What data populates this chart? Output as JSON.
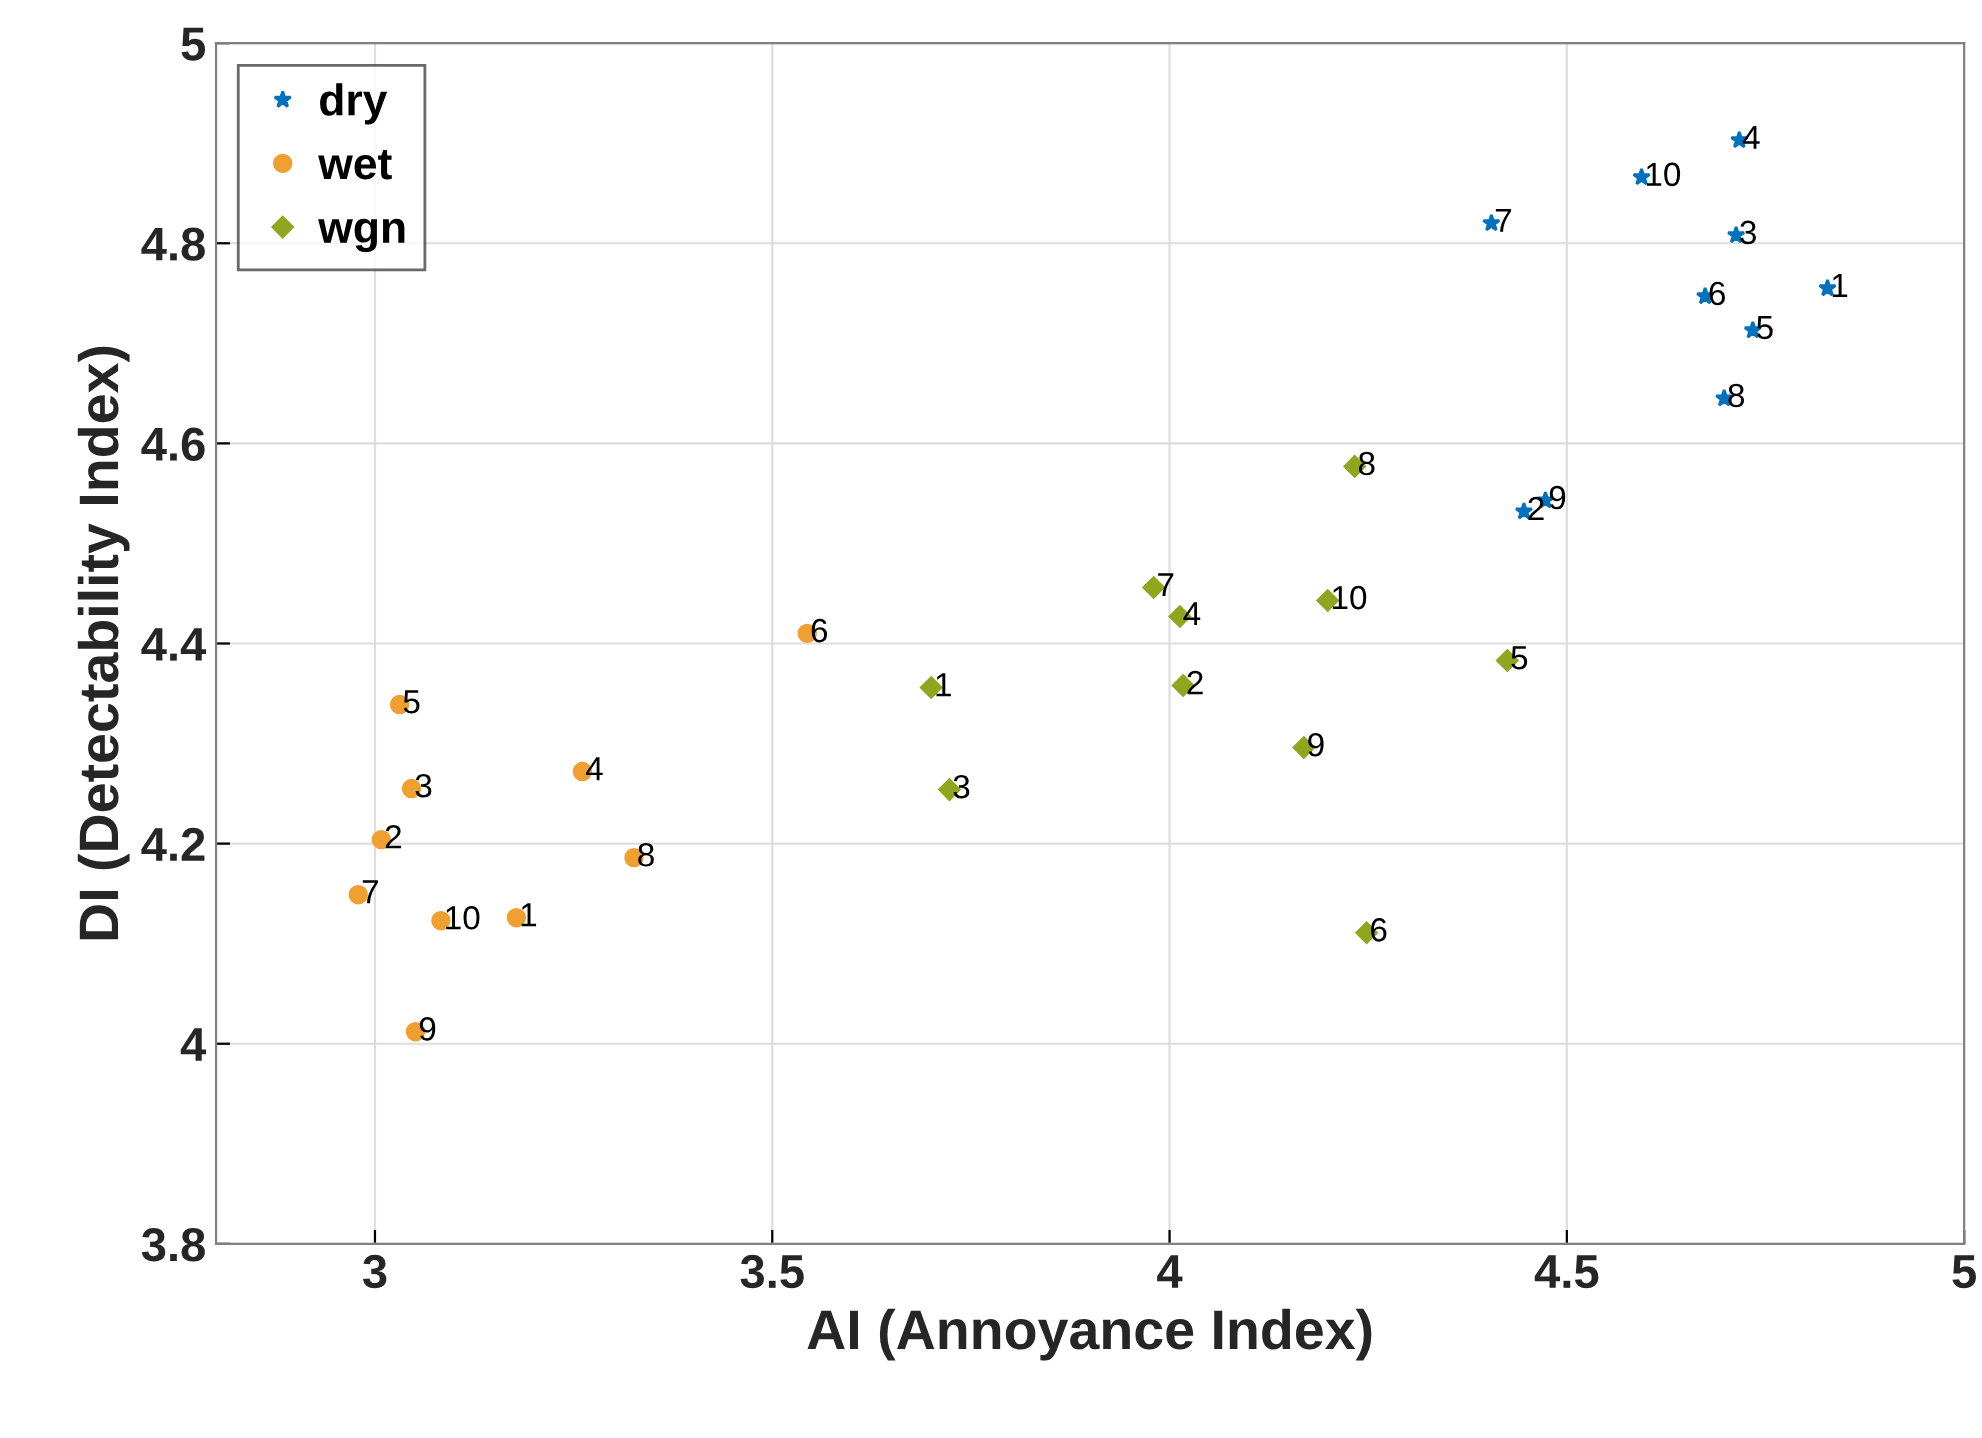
{
  "chart_data": {
    "type": "scatter",
    "xlabel": "AI (Annoyance Index)",
    "ylabel": "DI (Detectability Index)",
    "xlim": [
      2.8,
      5
    ],
    "xticks": [
      3,
      3.5,
      4,
      4.5,
      5
    ],
    "ylim": [
      3.8,
      5
    ],
    "yticks": [
      3.8,
      4,
      4.2,
      4.4,
      4.6,
      4.8,
      5
    ],
    "grid": true,
    "legend": "top left",
    "series": [
      {
        "name": "dry",
        "color": "#0072bd",
        "marker": "star",
        "x": [
          4.828,
          4.446,
          4.713,
          4.717,
          4.734,
          4.674,
          4.405,
          4.698,
          4.473,
          4.594
        ],
        "values": [
          4.755,
          4.532,
          4.808,
          4.903,
          4.713,
          4.747,
          4.82,
          4.645,
          4.543,
          4.866
        ]
      },
      {
        "name": "wet",
        "color": "#f0a030",
        "marker": "circle",
        "x": [
          3.178,
          3.008,
          3.046,
          3.261,
          3.031,
          3.544,
          2.979,
          3.326,
          3.051,
          3.083
        ],
        "values": [
          4.126,
          4.204,
          4.255,
          4.272,
          4.339,
          4.41,
          4.149,
          4.186,
          4.012,
          4.123
        ]
      },
      {
        "name": "wgn",
        "color": "#8fa61e",
        "marker": "diamond",
        "x": [
          3.7,
          4.017,
          3.723,
          4.013,
          4.425,
          4.248,
          3.98,
          4.233,
          4.169,
          4.199
        ],
        "values": [
          4.356,
          4.358,
          4.254,
          4.427,
          4.383,
          4.111,
          4.456,
          4.577,
          4.296,
          4.443
        ]
      }
    ],
    "annotations": [
      {
        "text": "1",
        "x": 4.828,
        "y": 4.755
      },
      {
        "text": "2",
        "x": 4.446,
        "y": 4.532
      },
      {
        "text": "3",
        "x": 4.713,
        "y": 4.808
      },
      {
        "text": "4",
        "x": 4.717,
        "y": 4.903
      },
      {
        "text": "5",
        "x": 4.734,
        "y": 4.713
      },
      {
        "text": "6",
        "x": 4.674,
        "y": 4.747
      },
      {
        "text": "7",
        "x": 4.405,
        "y": 4.82
      },
      {
        "text": "8",
        "x": 4.698,
        "y": 4.645
      },
      {
        "text": "9",
        "x": 4.473,
        "y": 4.543
      },
      {
        "text": "10",
        "x": 4.594,
        "y": 4.866
      },
      {
        "text": "1",
        "x": 3.178,
        "y": 4.126
      },
      {
        "text": "2",
        "x": 3.008,
        "y": 4.204
      },
      {
        "text": "3",
        "x": 3.046,
        "y": 4.255
      },
      {
        "text": "4",
        "x": 3.261,
        "y": 4.272
      },
      {
        "text": "5",
        "x": 3.031,
        "y": 4.339
      },
      {
        "text": "6",
        "x": 3.544,
        "y": 4.41
      },
      {
        "text": "7",
        "x": 2.979,
        "y": 4.149
      },
      {
        "text": "8",
        "x": 3.326,
        "y": 4.186
      },
      {
        "text": "9",
        "x": 3.051,
        "y": 4.012
      },
      {
        "text": "10",
        "x": 3.083,
        "y": 4.123
      },
      {
        "text": "1",
        "x": 3.7,
        "y": 4.356
      },
      {
        "text": "2",
        "x": 4.017,
        "y": 4.358
      },
      {
        "text": "3",
        "x": 3.723,
        "y": 4.254
      },
      {
        "text": "4",
        "x": 4.013,
        "y": 4.427
      },
      {
        "text": "5",
        "x": 4.425,
        "y": 4.383
      },
      {
        "text": "6",
        "x": 4.248,
        "y": 4.111
      },
      {
        "text": "7",
        "x": 3.98,
        "y": 4.456
      },
      {
        "text": "8",
        "x": 4.233,
        "y": 4.577
      },
      {
        "text": "9",
        "x": 4.169,
        "y": 4.296
      },
      {
        "text": "10",
        "x": 4.199,
        "y": 4.443
      }
    ]
  }
}
